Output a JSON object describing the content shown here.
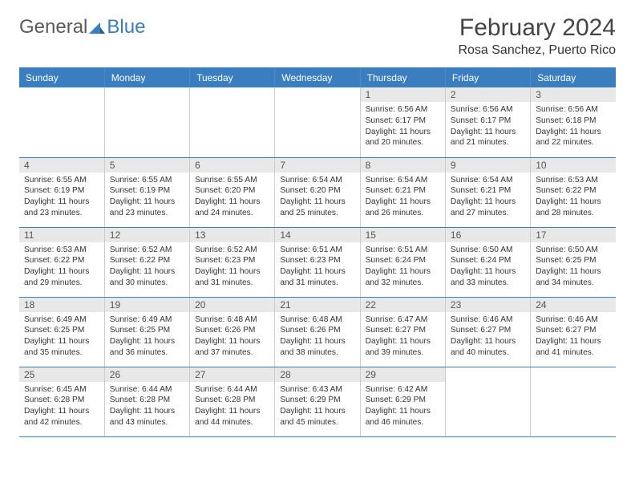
{
  "brand": {
    "part1": "General",
    "part2": "Blue"
  },
  "title": "February 2024",
  "location": "Rosa Sanchez, Puerto Rico",
  "colors": {
    "header_bg": "#3a7ebf",
    "header_text": "#ffffff",
    "daynum_bg": "#e8e8e8",
    "row_divider": "#3a7ebf",
    "cell_divider": "#cccccc"
  },
  "weekdays": [
    "Sunday",
    "Monday",
    "Tuesday",
    "Wednesday",
    "Thursday",
    "Friday",
    "Saturday"
  ],
  "weeks": [
    [
      {
        "empty": true
      },
      {
        "empty": true
      },
      {
        "empty": true
      },
      {
        "empty": true
      },
      {
        "day": "1",
        "sunrise": "Sunrise: 6:56 AM",
        "sunset": "Sunset: 6:17 PM",
        "daylight": "Daylight: 11 hours and 20 minutes."
      },
      {
        "day": "2",
        "sunrise": "Sunrise: 6:56 AM",
        "sunset": "Sunset: 6:17 PM",
        "daylight": "Daylight: 11 hours and 21 minutes."
      },
      {
        "day": "3",
        "sunrise": "Sunrise: 6:56 AM",
        "sunset": "Sunset: 6:18 PM",
        "daylight": "Daylight: 11 hours and 22 minutes."
      }
    ],
    [
      {
        "day": "4",
        "sunrise": "Sunrise: 6:55 AM",
        "sunset": "Sunset: 6:19 PM",
        "daylight": "Daylight: 11 hours and 23 minutes."
      },
      {
        "day": "5",
        "sunrise": "Sunrise: 6:55 AM",
        "sunset": "Sunset: 6:19 PM",
        "daylight": "Daylight: 11 hours and 23 minutes."
      },
      {
        "day": "6",
        "sunrise": "Sunrise: 6:55 AM",
        "sunset": "Sunset: 6:20 PM",
        "daylight": "Daylight: 11 hours and 24 minutes."
      },
      {
        "day": "7",
        "sunrise": "Sunrise: 6:54 AM",
        "sunset": "Sunset: 6:20 PM",
        "daylight": "Daylight: 11 hours and 25 minutes."
      },
      {
        "day": "8",
        "sunrise": "Sunrise: 6:54 AM",
        "sunset": "Sunset: 6:21 PM",
        "daylight": "Daylight: 11 hours and 26 minutes."
      },
      {
        "day": "9",
        "sunrise": "Sunrise: 6:54 AM",
        "sunset": "Sunset: 6:21 PM",
        "daylight": "Daylight: 11 hours and 27 minutes."
      },
      {
        "day": "10",
        "sunrise": "Sunrise: 6:53 AM",
        "sunset": "Sunset: 6:22 PM",
        "daylight": "Daylight: 11 hours and 28 minutes."
      }
    ],
    [
      {
        "day": "11",
        "sunrise": "Sunrise: 6:53 AM",
        "sunset": "Sunset: 6:22 PM",
        "daylight": "Daylight: 11 hours and 29 minutes."
      },
      {
        "day": "12",
        "sunrise": "Sunrise: 6:52 AM",
        "sunset": "Sunset: 6:22 PM",
        "daylight": "Daylight: 11 hours and 30 minutes."
      },
      {
        "day": "13",
        "sunrise": "Sunrise: 6:52 AM",
        "sunset": "Sunset: 6:23 PM",
        "daylight": "Daylight: 11 hours and 31 minutes."
      },
      {
        "day": "14",
        "sunrise": "Sunrise: 6:51 AM",
        "sunset": "Sunset: 6:23 PM",
        "daylight": "Daylight: 11 hours and 31 minutes."
      },
      {
        "day": "15",
        "sunrise": "Sunrise: 6:51 AM",
        "sunset": "Sunset: 6:24 PM",
        "daylight": "Daylight: 11 hours and 32 minutes."
      },
      {
        "day": "16",
        "sunrise": "Sunrise: 6:50 AM",
        "sunset": "Sunset: 6:24 PM",
        "daylight": "Daylight: 11 hours and 33 minutes."
      },
      {
        "day": "17",
        "sunrise": "Sunrise: 6:50 AM",
        "sunset": "Sunset: 6:25 PM",
        "daylight": "Daylight: 11 hours and 34 minutes."
      }
    ],
    [
      {
        "day": "18",
        "sunrise": "Sunrise: 6:49 AM",
        "sunset": "Sunset: 6:25 PM",
        "daylight": "Daylight: 11 hours and 35 minutes."
      },
      {
        "day": "19",
        "sunrise": "Sunrise: 6:49 AM",
        "sunset": "Sunset: 6:25 PM",
        "daylight": "Daylight: 11 hours and 36 minutes."
      },
      {
        "day": "20",
        "sunrise": "Sunrise: 6:48 AM",
        "sunset": "Sunset: 6:26 PM",
        "daylight": "Daylight: 11 hours and 37 minutes."
      },
      {
        "day": "21",
        "sunrise": "Sunrise: 6:48 AM",
        "sunset": "Sunset: 6:26 PM",
        "daylight": "Daylight: 11 hours and 38 minutes."
      },
      {
        "day": "22",
        "sunrise": "Sunrise: 6:47 AM",
        "sunset": "Sunset: 6:27 PM",
        "daylight": "Daylight: 11 hours and 39 minutes."
      },
      {
        "day": "23",
        "sunrise": "Sunrise: 6:46 AM",
        "sunset": "Sunset: 6:27 PM",
        "daylight": "Daylight: 11 hours and 40 minutes."
      },
      {
        "day": "24",
        "sunrise": "Sunrise: 6:46 AM",
        "sunset": "Sunset: 6:27 PM",
        "daylight": "Daylight: 11 hours and 41 minutes."
      }
    ],
    [
      {
        "day": "25",
        "sunrise": "Sunrise: 6:45 AM",
        "sunset": "Sunset: 6:28 PM",
        "daylight": "Daylight: 11 hours and 42 minutes."
      },
      {
        "day": "26",
        "sunrise": "Sunrise: 6:44 AM",
        "sunset": "Sunset: 6:28 PM",
        "daylight": "Daylight: 11 hours and 43 minutes."
      },
      {
        "day": "27",
        "sunrise": "Sunrise: 6:44 AM",
        "sunset": "Sunset: 6:28 PM",
        "daylight": "Daylight: 11 hours and 44 minutes."
      },
      {
        "day": "28",
        "sunrise": "Sunrise: 6:43 AM",
        "sunset": "Sunset: 6:29 PM",
        "daylight": "Daylight: 11 hours and 45 minutes."
      },
      {
        "day": "29",
        "sunrise": "Sunrise: 6:42 AM",
        "sunset": "Sunset: 6:29 PM",
        "daylight": "Daylight: 11 hours and 46 minutes."
      },
      {
        "empty": true
      },
      {
        "empty": true
      }
    ]
  ]
}
